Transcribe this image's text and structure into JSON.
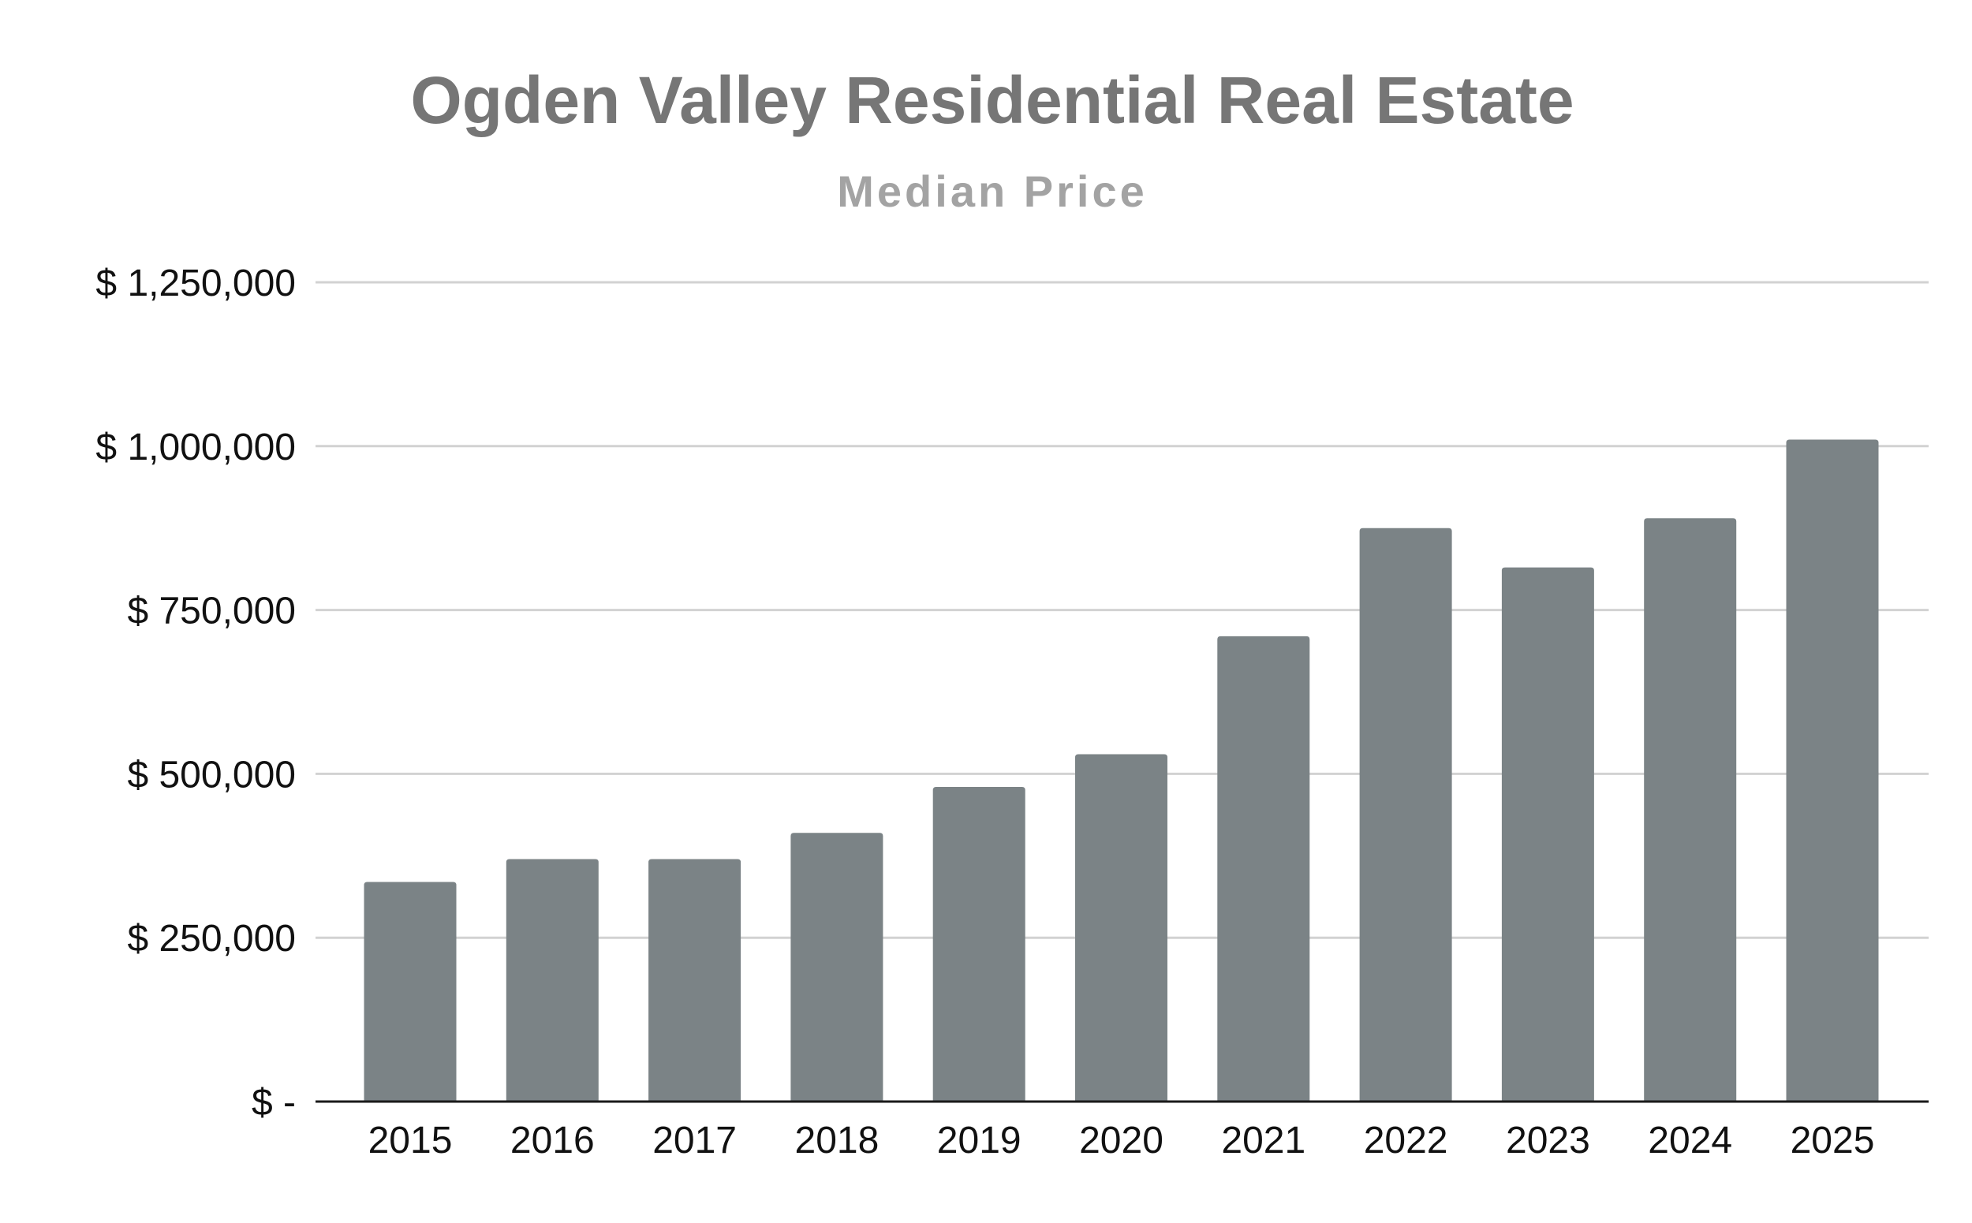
{
  "chart_data": {
    "type": "bar",
    "title": "Ogden Valley Residential Real Estate",
    "subtitle": "Median Price",
    "xlabel": "",
    "ylabel": "",
    "categories": [
      "2015",
      "2016",
      "2017",
      "2018",
      "2019",
      "2020",
      "2021",
      "2022",
      "2023",
      "2024",
      "2025"
    ],
    "values": [
      335000,
      370000,
      370000,
      410000,
      480000,
      530000,
      710000,
      875000,
      815000,
      890000,
      1010000
    ],
    "ylim": [
      0,
      1250000
    ],
    "yticks": [
      0,
      250000,
      500000,
      750000,
      1000000,
      1250000
    ],
    "ytick_labels": [
      "$ -",
      "$ 250,000",
      "$ 500,000",
      "$ 750,000",
      "$ 1,000,000",
      "$ 1,250,000"
    ],
    "grid": true,
    "legend": "none",
    "colors": {
      "bar": "#7b8386",
      "title": "#767676",
      "subtitle": "#a3a3a3",
      "axis_text": "#111111",
      "gridline": "#d2d2d2",
      "baseline": "#1a1a1a"
    }
  }
}
